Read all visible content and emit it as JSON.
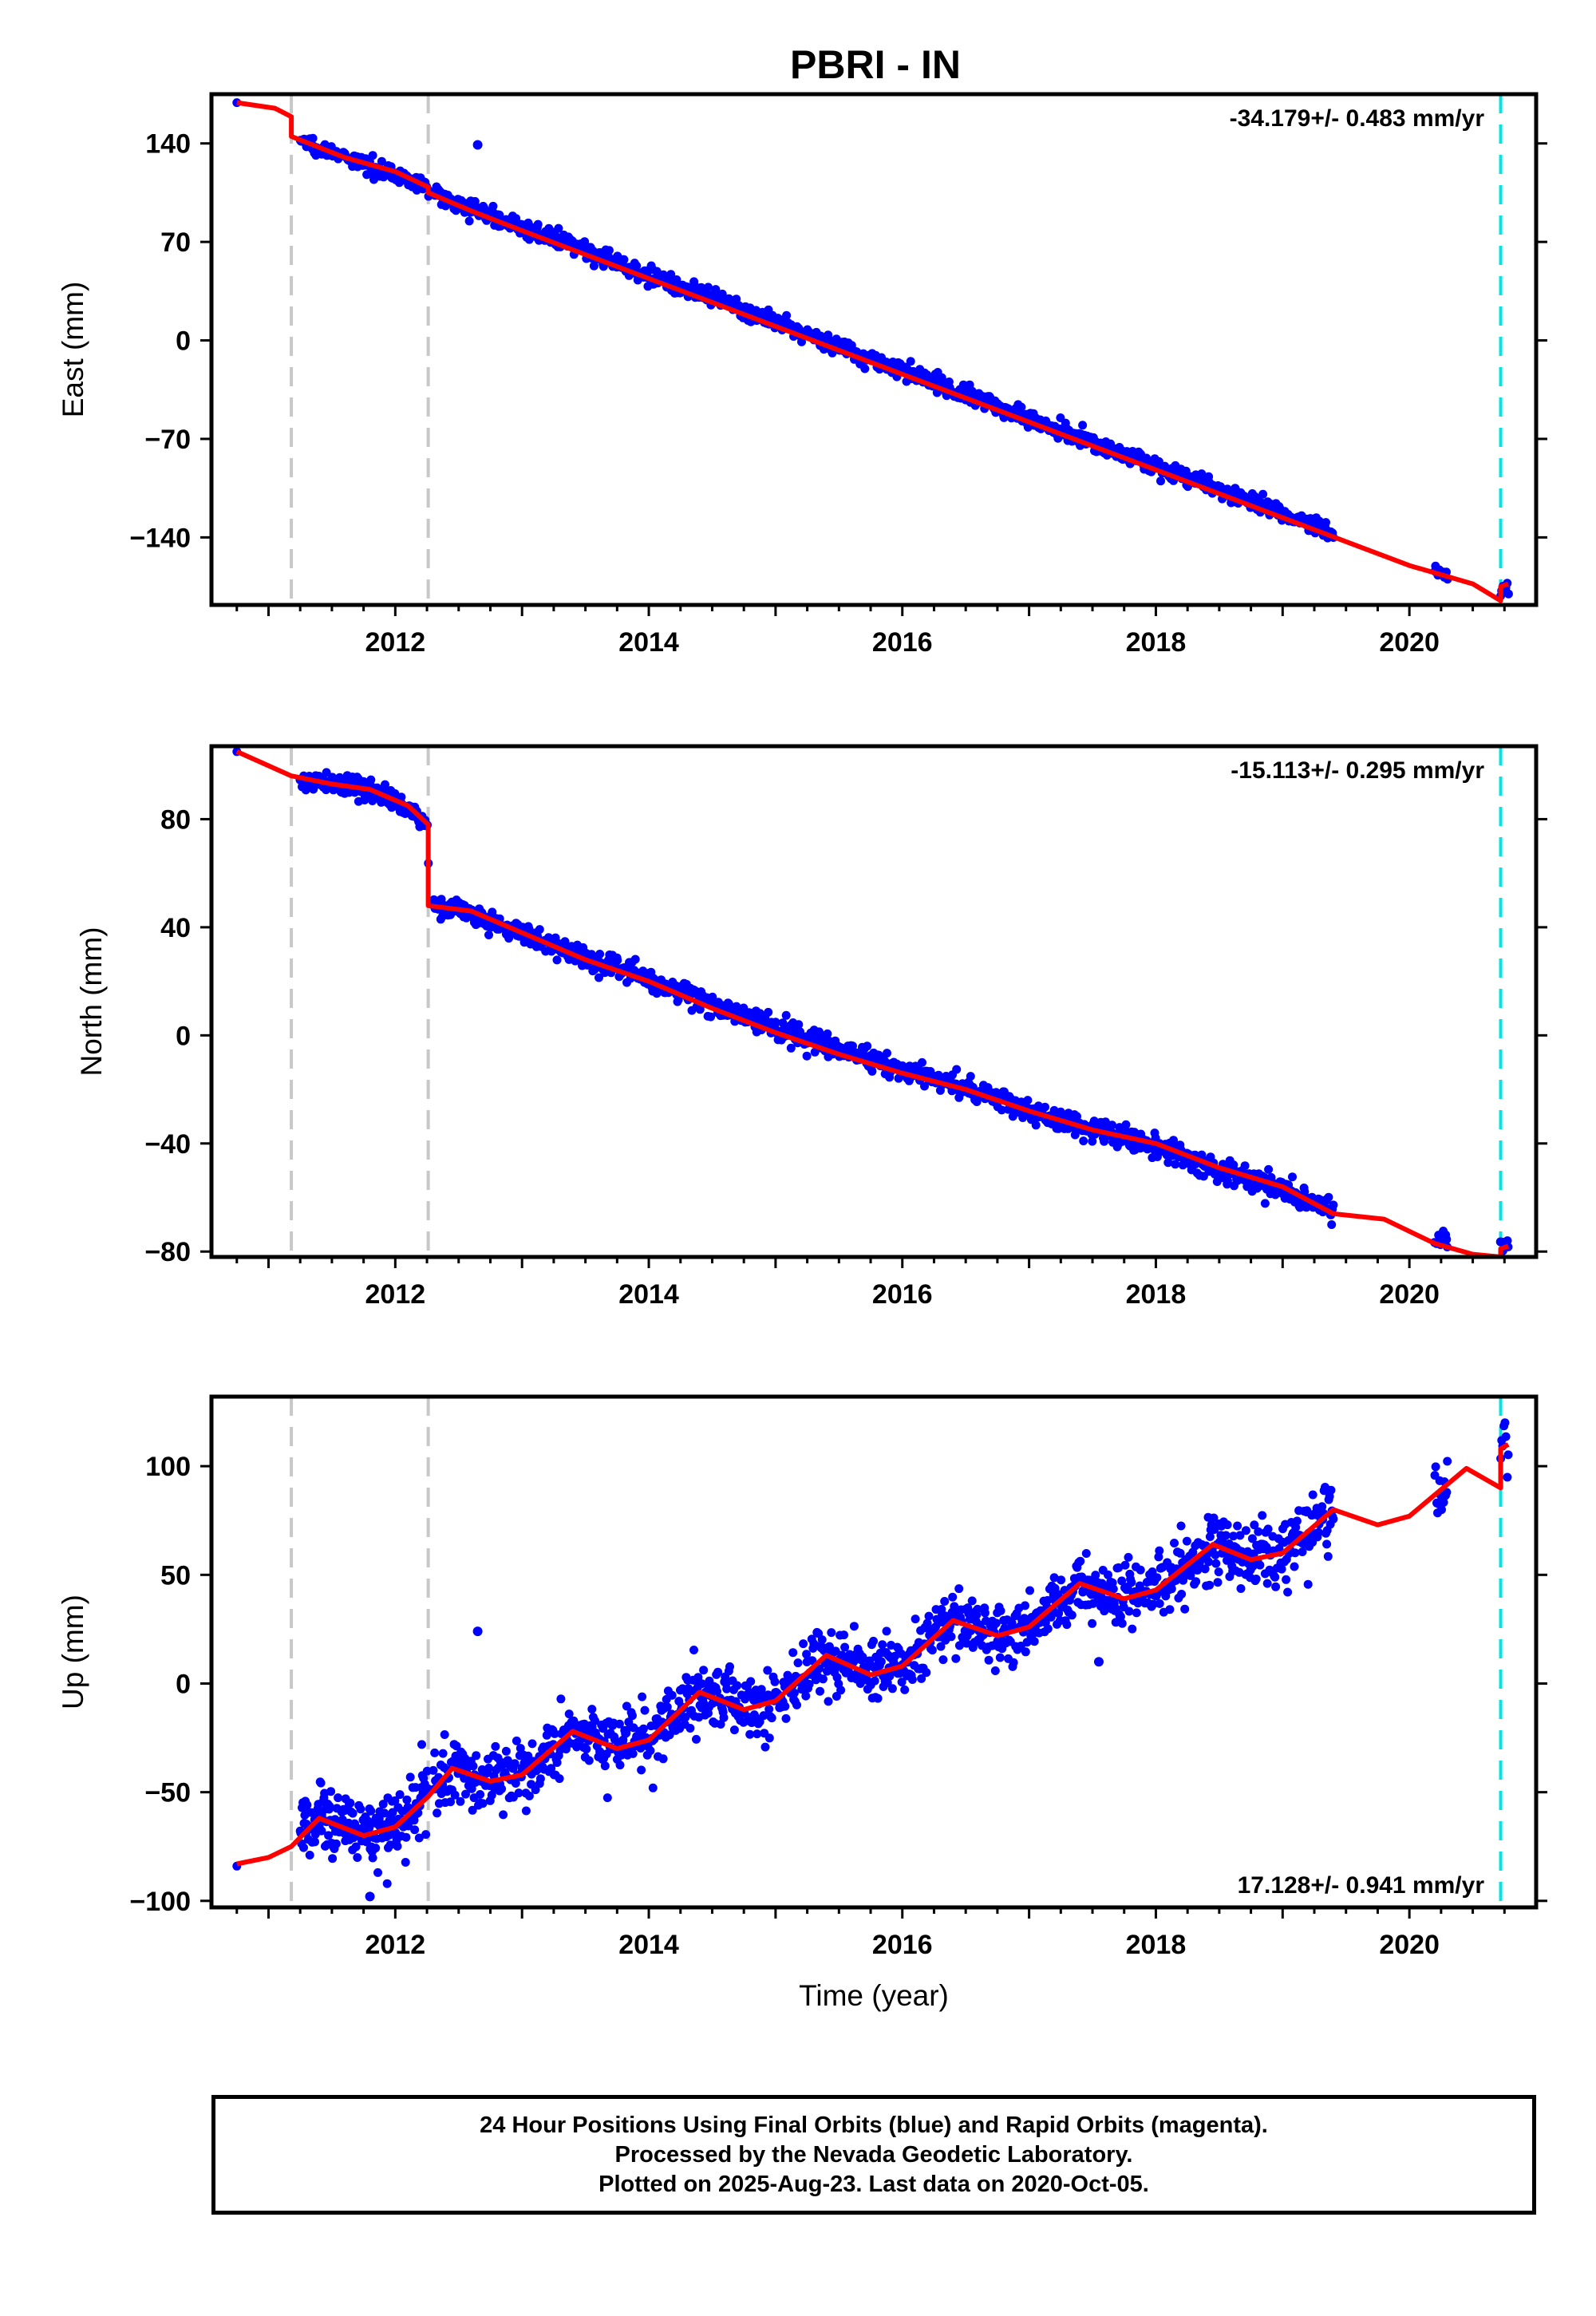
{
  "page": {
    "title": "PBRI - IN"
  },
  "colors": {
    "final": "#0000ff",
    "model": "#ff0000",
    "epoch": "#c8c8c8",
    "last": "#00e5e5"
  },
  "chart_data": [
    {
      "type": "scatter",
      "name": "east",
      "ylabel": "East (mm)",
      "xlim": [
        2010.55,
        2021.0
      ],
      "ylim": [
        -188,
        175
      ],
      "yticks": [
        140,
        70,
        0,
        -70,
        -140
      ],
      "ytick_labels": [
        "140",
        "70",
        "0",
        "−70",
        "−140"
      ],
      "xticks": [
        2012,
        2014,
        2016,
        2018,
        2020
      ],
      "xtick_labels": [
        "2012",
        "2014",
        "2016",
        "2018",
        "2020"
      ],
      "rate_label": "-34.179+/- 0.483 mm/yr",
      "rate_position": "top-right",
      "epochs": [
        2011.18,
        2012.26
      ],
      "last_data": 2020.72,
      "data_segments": [
        {
          "x0": 2010.75,
          "x1": 2010.75,
          "y0": 169,
          "y1": 169,
          "n": 1,
          "noise": 1
        },
        {
          "x0": 2011.25,
          "x1": 2012.26,
          "y0": 142,
          "y1": 106,
          "n": 170,
          "noise": 2.5
        },
        {
          "x0": 2012.3,
          "x1": 2019.4,
          "y0": 108,
          "y1": -133,
          "n": 1100,
          "noise": 3
        },
        {
          "x0": 2020.2,
          "x1": 2020.3,
          "y0": -162,
          "y1": -163,
          "n": 14,
          "noise": 2
        },
        {
          "x0": 2020.72,
          "x1": 2020.78,
          "y0": -178,
          "y1": -175,
          "n": 8,
          "noise": 3
        }
      ],
      "outliers": [
        [
          2012.65,
          139
        ]
      ],
      "model": [
        [
          2010.75,
          169
        ],
        [
          2011.05,
          165
        ],
        [
          2011.18,
          159
        ],
        [
          2011.18,
          145
        ],
        [
          2011.6,
          130
        ],
        [
          2012.0,
          120
        ],
        [
          2012.26,
          109
        ],
        [
          2012.26,
          105
        ],
        [
          2012.6,
          92
        ],
        [
          2013.0,
          78
        ],
        [
          2013.5,
          61
        ],
        [
          2014.0,
          44
        ],
        [
          2014.5,
          27
        ],
        [
          2015.0,
          10
        ],
        [
          2015.5,
          -7
        ],
        [
          2016.0,
          -24
        ],
        [
          2016.5,
          -41
        ],
        [
          2017.0,
          -58
        ],
        [
          2017.5,
          -75
        ],
        [
          2018.0,
          -92
        ],
        [
          2018.5,
          -109
        ],
        [
          2019.0,
          -126
        ],
        [
          2019.5,
          -143
        ],
        [
          2020.0,
          -160
        ],
        [
          2020.5,
          -173
        ],
        [
          2020.72,
          -185
        ],
        [
          2020.72,
          -175
        ],
        [
          2020.78,
          -173
        ]
      ]
    },
    {
      "type": "scatter",
      "name": "north",
      "ylabel": "North (mm)",
      "xlim": [
        2010.55,
        2021.0
      ],
      "ylim": [
        -82,
        107
      ],
      "yticks": [
        80,
        40,
        0,
        -40,
        -80
      ],
      "ytick_labels": [
        "80",
        "40",
        "0",
        "−40",
        "−80"
      ],
      "xticks": [
        2012,
        2014,
        2016,
        2018,
        2020
      ],
      "xtick_labels": [
        "2012",
        "2014",
        "2016",
        "2018",
        "2020"
      ],
      "rate_label": "-15.113+/- 0.295 mm/yr",
      "rate_position": "top-right",
      "epochs": [
        2011.18,
        2012.26
      ],
      "last_data": 2020.72,
      "data_segments": [
        {
          "x0": 2010.75,
          "x1": 2010.75,
          "y0": 105,
          "y1": 105,
          "n": 1,
          "noise": 1
        },
        {
          "x0": 2011.25,
          "x1": 2011.7,
          "y0": 93,
          "y1": 93,
          "n": 70,
          "noise": 1.8
        },
        {
          "x0": 2011.7,
          "x1": 2012.26,
          "y0": 93,
          "y1": 79,
          "n": 90,
          "noise": 1.8
        },
        {
          "x0": 2012.3,
          "x1": 2019.4,
          "y0": 49,
          "y1": -65,
          "n": 1100,
          "noise": 2
        },
        {
          "x0": 2020.2,
          "x1": 2020.3,
          "y0": -75,
          "y1": -75,
          "n": 14,
          "noise": 1.5
        },
        {
          "x0": 2020.72,
          "x1": 2020.78,
          "y0": -78,
          "y1": -78,
          "n": 8,
          "noise": 1.5
        }
      ],
      "outliers": [],
      "model": [
        [
          2010.75,
          105
        ],
        [
          2011.18,
          96
        ],
        [
          2011.5,
          93
        ],
        [
          2011.8,
          91
        ],
        [
          2012.1,
          85
        ],
        [
          2012.26,
          78
        ],
        [
          2012.26,
          48
        ],
        [
          2012.6,
          46
        ],
        [
          2013.0,
          38
        ],
        [
          2013.5,
          28
        ],
        [
          2014.0,
          20
        ],
        [
          2014.5,
          10
        ],
        [
          2015.0,
          1
        ],
        [
          2015.5,
          -7
        ],
        [
          2016.0,
          -14
        ],
        [
          2016.5,
          -20
        ],
        [
          2017.0,
          -28
        ],
        [
          2017.5,
          -35
        ],
        [
          2018.0,
          -40
        ],
        [
          2018.5,
          -49
        ],
        [
          2019.0,
          -56
        ],
        [
          2019.4,
          -66
        ],
        [
          2019.8,
          -68
        ],
        [
          2020.2,
          -77
        ],
        [
          2020.5,
          -81
        ],
        [
          2020.72,
          -82
        ],
        [
          2020.72,
          -79
        ],
        [
          2020.78,
          -78
        ]
      ]
    },
    {
      "type": "scatter",
      "name": "up",
      "ylabel": "Up (mm)",
      "xlabel": "Time (year)",
      "xlim": [
        2010.55,
        2021.0
      ],
      "ylim": [
        -103,
        132
      ],
      "yticks": [
        100,
        50,
        0,
        -50,
        -100
      ],
      "ytick_labels": [
        "100",
        "50",
        "0",
        "−50",
        "−100"
      ],
      "xticks": [
        2012,
        2014,
        2016,
        2018,
        2020
      ],
      "xtick_labels": [
        "2012",
        "2014",
        "2016",
        "2018",
        "2020"
      ],
      "rate_label": "17.128+/- 0.941 mm/yr",
      "rate_position": "bottom-right",
      "epochs": [
        2011.18,
        2012.26
      ],
      "last_data": 2020.72,
      "data_segments": [
        {
          "x0": 2010.75,
          "x1": 2010.75,
          "y0": -84,
          "y1": -84,
          "n": 1,
          "noise": 1
        },
        {
          "x0": 2011.25,
          "x1": 2012.26,
          "y0": -62,
          "y1": -58,
          "n": 200,
          "noise": 8
        },
        {
          "x0": 2012.3,
          "x1": 2019.4,
          "y0": -42,
          "y1": 74,
          "n": 1200,
          "noise": 7
        },
        {
          "x0": 2020.2,
          "x1": 2020.3,
          "y0": 82,
          "y1": 80,
          "n": 14,
          "noise": 6
        },
        {
          "x0": 2020.72,
          "x1": 2020.78,
          "y0": 112,
          "y1": 115,
          "n": 8,
          "noise": 8
        }
      ],
      "outliers": [
        [
          2012.65,
          24
        ],
        [
          2017.55,
          10
        ],
        [
          2011.8,
          -98
        ]
      ],
      "model": [
        [
          2010.75,
          -83
        ],
        [
          2011.0,
          -80
        ],
        [
          2011.18,
          -75
        ],
        [
          2011.4,
          -62
        ],
        [
          2011.75,
          -70
        ],
        [
          2012.0,
          -66
        ],
        [
          2012.26,
          -52
        ],
        [
          2012.45,
          -39
        ],
        [
          2012.75,
          -45
        ],
        [
          2013.0,
          -42
        ],
        [
          2013.4,
          -22
        ],
        [
          2013.75,
          -30
        ],
        [
          2014.0,
          -26
        ],
        [
          2014.4,
          -4
        ],
        [
          2014.75,
          -12
        ],
        [
          2015.0,
          -8
        ],
        [
          2015.4,
          13
        ],
        [
          2015.75,
          4
        ],
        [
          2016.0,
          8
        ],
        [
          2016.4,
          29
        ],
        [
          2016.75,
          22
        ],
        [
          2017.0,
          26
        ],
        [
          2017.4,
          46
        ],
        [
          2017.75,
          39
        ],
        [
          2018.0,
          43
        ],
        [
          2018.45,
          64
        ],
        [
          2018.75,
          57
        ],
        [
          2019.0,
          60
        ],
        [
          2019.4,
          80
        ],
        [
          2019.75,
          73
        ],
        [
          2020.0,
          77
        ],
        [
          2020.45,
          99
        ],
        [
          2020.72,
          90
        ],
        [
          2020.72,
          108
        ],
        [
          2020.78,
          110
        ]
      ]
    }
  ],
  "caption": {
    "line1": "24 Hour Positions Using Final Orbits (blue) and Rapid Orbits (magenta).",
    "line2": "Processed by the Nevada Geodetic Laboratory.",
    "line3": "Plotted on 2025-Aug-23. Last data on 2020-Oct-05."
  }
}
